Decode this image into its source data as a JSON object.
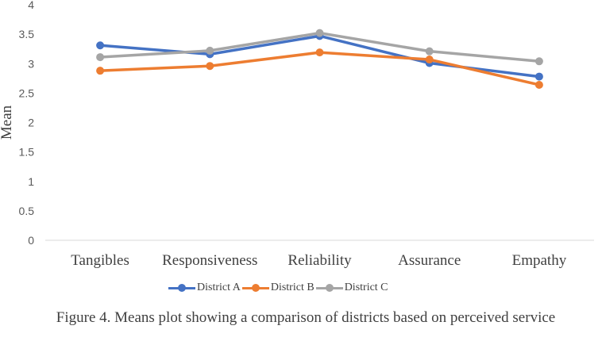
{
  "chart_data": {
    "type": "line",
    "categories": [
      "Tangibles",
      "Responsiveness",
      "Reliability",
      "Assurance",
      "Empathy"
    ],
    "series": [
      {
        "name": "District A",
        "color": "#4472C4",
        "values": [
          3.31,
          3.16,
          3.47,
          3.01,
          2.78
        ]
      },
      {
        "name": "District B",
        "color": "#ED7D31",
        "values": [
          2.88,
          2.96,
          3.19,
          3.07,
          2.64
        ]
      },
      {
        "name": "District C",
        "color": "#A5A5A5",
        "values": [
          3.11,
          3.22,
          3.52,
          3.21,
          3.04
        ]
      }
    ],
    "ylabel": "Mean",
    "xlabel": "",
    "ylim": [
      0,
      4
    ],
    "yticks": [
      "0",
      "0.5",
      "1",
      "1.5",
      "2",
      "2.5",
      "3",
      "3.5",
      "4"
    ],
    "legend_position": "bottom",
    "grid": false
  },
  "caption": "Figure 4. Means plot showing a comparison of districts based on perceived service"
}
